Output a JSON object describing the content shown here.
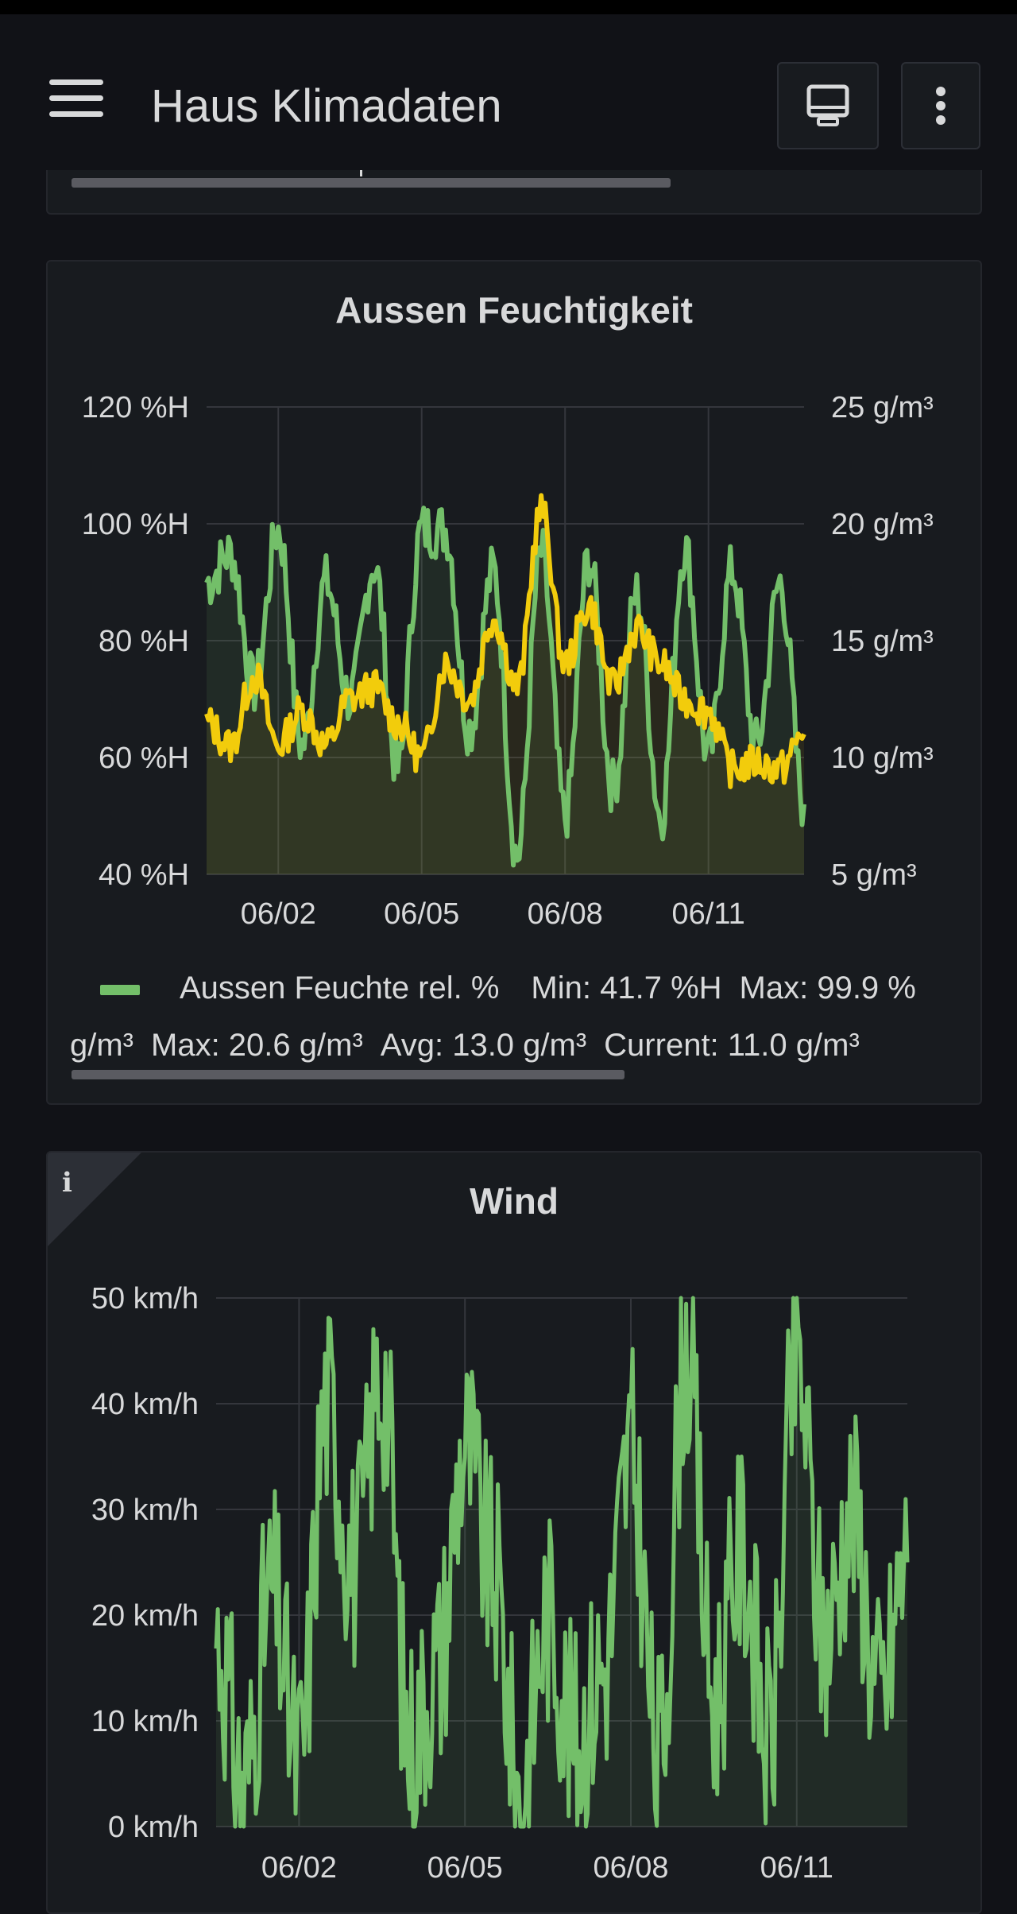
{
  "header": {
    "title": "Haus Klimadaten",
    "menu_icon": "hamburger-menu-icon",
    "tv_icon": "monitor-icon",
    "more_icon": "more-vertical-icon"
  },
  "colors": {
    "background": "#111217",
    "panel": "#181b1f",
    "green_series": "#73bf69",
    "yellow_series": "#f2cc0c"
  },
  "panels": {
    "humidity": {
      "title": "Aussen Feuchtigkeit",
      "legend_line1": {
        "series": "Aussen Feuchte rel. %",
        "min": "Min: 41.7 %H",
        "max": "Max: 99.9 %"
      },
      "legend_line2": {
        "min": "g/m³",
        "max": "Max: 20.6 g/m³",
        "avg": "Avg: 13.0 g/m³",
        "current": "Current: 11.0 g/m³"
      }
    },
    "wind": {
      "title": "Wind",
      "info_icon": "info-icon"
    }
  },
  "chart_data": [
    {
      "type": "area",
      "title": "Aussen Feuchtigkeit",
      "x_ticks": [
        "06/02",
        "06/05",
        "06/08",
        "06/11"
      ],
      "x": [
        "05/31 12:00",
        "06/01",
        "06/01 12:00",
        "06/02",
        "06/02 12:00",
        "06/03",
        "06/03 12:00",
        "06/04",
        "06/04 12:00",
        "06/05",
        "06/05 12:00",
        "06/06",
        "06/06 12:00",
        "06/07",
        "06/07 12:00",
        "06/08",
        "06/08 12:00",
        "06/09",
        "06/09 12:00",
        "06/10",
        "06/10 12:00",
        "06/11",
        "06/11 12:00",
        "06/12",
        "06/12 12:00",
        "06/13"
      ],
      "y_left": {
        "ticks": [
          "40 %H",
          "60 %H",
          "80 %H",
          "100 %H",
          "120 %H"
        ],
        "range": [
          40,
          120
        ],
        "unit": "%H"
      },
      "y_right": {
        "ticks": [
          "5 g/m³",
          "10 g/m³",
          "15 g/m³",
          "20 g/m³",
          "25 g/m³"
        ],
        "range": [
          5,
          25
        ],
        "unit": "g/m³"
      },
      "grid": true,
      "legend_position": "bottom",
      "series": [
        {
          "name": "Aussen Feuchte rel. %",
          "axis": "left",
          "color": "#73bf69",
          "values": [
            90,
            95,
            72,
            99,
            62,
            90,
            70,
            93,
            58,
            99,
            99,
            65,
            92,
            43,
            95,
            50,
            94,
            55,
            88,
            50,
            96,
            60,
            92,
            62,
            90,
            52
          ]
        },
        {
          "axis": "right",
          "color": "#f2cc0c",
          "values": [
            11.5,
            10.5,
            13.5,
            10.5,
            12.0,
            10.5,
            12.5,
            13.0,
            11.5,
            10.0,
            14.0,
            12.5,
            16.0,
            13.0,
            20.6,
            14.0,
            16.5,
            13.0,
            15.5,
            14.0,
            12.5,
            12.0,
            9.5,
            9.8,
            9.5,
            11.0
          ]
        }
      ]
    },
    {
      "type": "area",
      "title": "Wind",
      "x_ticks": [
        "06/02",
        "06/05",
        "06/08",
        "06/11"
      ],
      "x": [
        "05/31 12:00",
        "06/01",
        "06/01 12:00",
        "06/02",
        "06/02 12:00",
        "06/03",
        "06/03 12:00",
        "06/04",
        "06/04 12:00",
        "06/05",
        "06/05 12:00",
        "06/06",
        "06/06 12:00",
        "06/07",
        "06/07 12:00",
        "06/08",
        "06/08 12:00",
        "06/09",
        "06/09 12:00",
        "06/10",
        "06/10 12:00",
        "06/11",
        "06/11 12:00",
        "06/12",
        "06/12 12:00",
        "06/13"
      ],
      "y": {
        "ticks": [
          "0 km/h",
          "10 km/h",
          "20 km/h",
          "30 km/h",
          "40 km/h",
          "50 km/h"
        ],
        "range": [
          0,
          50
        ],
        "unit": "km/h"
      },
      "grid": true,
      "series": [
        {
          "color": "#73bf69",
          "values": [
            18,
            4,
            22,
            6,
            40,
            25,
            43,
            8,
            15,
            36,
            24,
            3,
            20,
            8,
            15,
            35,
            6,
            45,
            12,
            26,
            8,
            44,
            18,
            30,
            12,
            25
          ]
        }
      ]
    }
  ]
}
